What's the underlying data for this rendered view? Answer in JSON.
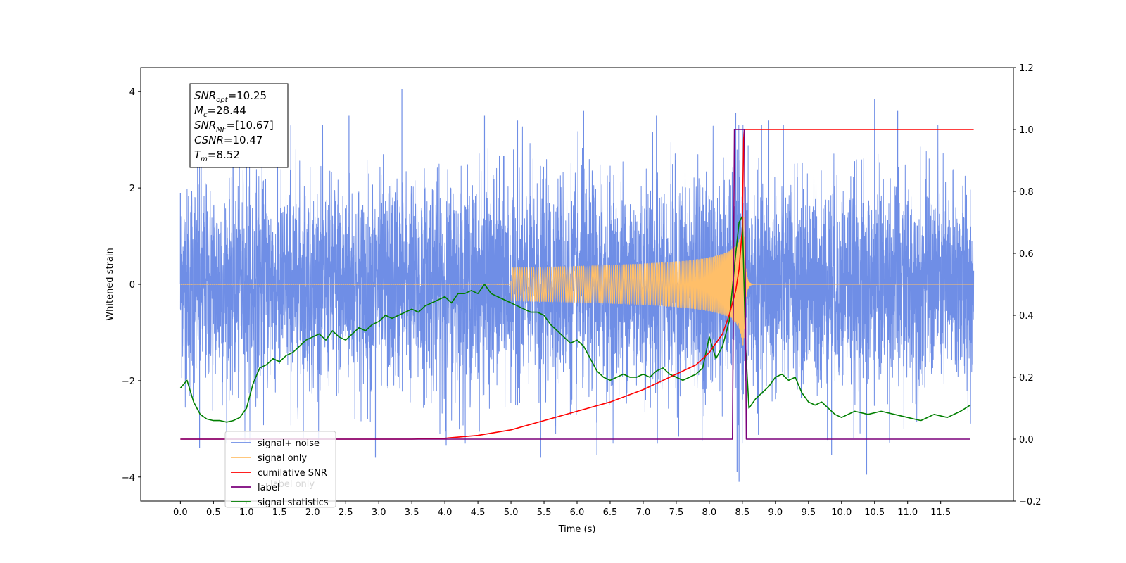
{
  "chart_data": {
    "type": "line",
    "xlabel": "Time (s)",
    "ylabel": "Whitened strain",
    "xlim": [
      -0.6,
      12.6
    ],
    "ylim": [
      -4.5,
      4.5
    ],
    "y2lim": [
      -0.2,
      1.2
    ],
    "grid": false,
    "legend_position": "lower-left",
    "x_ticks": [
      "0.0",
      "0.5",
      "1.0",
      "1.5",
      "2.0",
      "2.5",
      "3.0",
      "3.5",
      "4.0",
      "4.5",
      "5.0",
      "5.5",
      "6.0",
      "6.5",
      "7.0",
      "7.5",
      "8.0",
      "8.5",
      "9.0",
      "9.5",
      "10.0",
      "10.5",
      "11.0",
      "11.5"
    ],
    "y_ticks": [
      "4",
      "2",
      "0",
      "−2",
      "−4"
    ],
    "y2_ticks": [
      "1.2",
      "1.0",
      "0.8",
      "0.6",
      "0.4",
      "0.2",
      "0.0",
      "−0.2"
    ],
    "legend": [
      {
        "label": "signal+ noise",
        "color": "#6f8ee6"
      },
      {
        "label": "signal only",
        "color": "#ffbf69"
      },
      {
        "label": "cumilative SNR",
        "color": "#ff0000"
      },
      {
        "label": "label",
        "color": "#7b007b"
      },
      {
        "label": "signal statistics",
        "color": "#007f00"
      }
    ],
    "hidden_legend_text": "label only",
    "annotation": {
      "lines": [
        {
          "base": "SNR",
          "sub": "opt",
          "value": "=10.25"
        },
        {
          "base": "M",
          "sub": "c",
          "value": "=28.44"
        },
        {
          "base": "SNR",
          "sub": "MF",
          "value": "=[10.67]"
        },
        {
          "base": "CSNR",
          "sub": "",
          "value": "=10.47"
        },
        {
          "base": "T",
          "sub": "m",
          "value": "=8.52"
        }
      ]
    },
    "series": [
      {
        "name": "signal+ noise",
        "axis": "left",
        "color": "#6f8ee6",
        "x_range": [
          0.0,
          12.0
        ],
        "noise_sigma": 1.0,
        "peak_values": [
          {
            "x": 0.0,
            "y": 1.9
          },
          {
            "x": 0.26,
            "y": 3.3
          },
          {
            "x": 0.29,
            "y": -3.4
          },
          {
            "x": 1.0,
            "y": 3.8
          },
          {
            "x": 1.67,
            "y": 3.3
          },
          {
            "x": 2.55,
            "y": 3.5
          },
          {
            "x": 2.95,
            "y": -3.6
          },
          {
            "x": 3.35,
            "y": 4.05
          },
          {
            "x": 4.02,
            "y": -3.35
          },
          {
            "x": 4.6,
            "y": 3.5
          },
          {
            "x": 5.1,
            "y": 3.4
          },
          {
            "x": 5.45,
            "y": -3.6
          },
          {
            "x": 6.1,
            "y": 3.6
          },
          {
            "x": 6.3,
            "y": -3.55
          },
          {
            "x": 7.2,
            "y": 3.5
          },
          {
            "x": 8.4,
            "y": 3.55
          },
          {
            "x": 8.42,
            "y": -3.9
          },
          {
            "x": 8.45,
            "y": -4.1
          },
          {
            "x": 8.9,
            "y": 3.4
          },
          {
            "x": 9.85,
            "y": -3.55
          },
          {
            "x": 10.38,
            "y": -3.95
          },
          {
            "x": 10.5,
            "y": 3.85
          },
          {
            "x": 10.85,
            "y": 3.6
          },
          {
            "x": 11.95,
            "y": -2.9
          }
        ]
      },
      {
        "name": "signal only",
        "axis": "left",
        "color": "#ffbf69",
        "x_range": [
          0.0,
          12.0
        ],
        "merger_time": 8.52,
        "peak_amplitude": 1.4
      },
      {
        "name": "cumilative SNR",
        "axis": "right",
        "color": "#ff0000",
        "x": [
          0.0,
          3.5,
          4.0,
          4.5,
          5.0,
          5.5,
          6.0,
          6.5,
          7.0,
          7.5,
          7.8,
          8.0,
          8.2,
          8.3,
          8.4,
          8.45,
          8.5,
          8.52,
          8.53,
          12.0
        ],
        "values": [
          0.0,
          0.0,
          0.003,
          0.012,
          0.03,
          0.06,
          0.09,
          0.12,
          0.16,
          0.21,
          0.24,
          0.28,
          0.34,
          0.4,
          0.48,
          0.55,
          0.68,
          0.97,
          1.0,
          1.0
        ]
      },
      {
        "name": "label",
        "axis": "right",
        "color": "#7b007b",
        "x": [
          0.0,
          8.35,
          8.38,
          8.5,
          8.53,
          8.56,
          11.95
        ],
        "values": [
          0.0,
          0.0,
          1.0,
          1.0,
          1.0,
          0.0,
          0.0
        ]
      },
      {
        "name": "signal statistics",
        "axis": "right",
        "color": "#007f00",
        "x": [
          0.0,
          0.1,
          0.2,
          0.3,
          0.4,
          0.5,
          0.6,
          0.7,
          0.8,
          0.9,
          1.0,
          1.1,
          1.2,
          1.3,
          1.4,
          1.5,
          1.6,
          1.7,
          1.8,
          1.9,
          2.0,
          2.1,
          2.2,
          2.3,
          2.4,
          2.5,
          2.6,
          2.7,
          2.8,
          2.9,
          3.0,
          3.1,
          3.2,
          3.3,
          3.4,
          3.5,
          3.6,
          3.7,
          3.8,
          3.9,
          4.0,
          4.1,
          4.2,
          4.3,
          4.4,
          4.5,
          4.6,
          4.7,
          4.8,
          4.9,
          5.0,
          5.1,
          5.2,
          5.3,
          5.4,
          5.5,
          5.6,
          5.7,
          5.8,
          5.9,
          6.0,
          6.1,
          6.2,
          6.3,
          6.4,
          6.5,
          6.6,
          6.7,
          6.8,
          6.9,
          7.0,
          7.1,
          7.2,
          7.3,
          7.4,
          7.5,
          7.6,
          7.7,
          7.8,
          7.9,
          8.0,
          8.1,
          8.2,
          8.3,
          8.4,
          8.45,
          8.5,
          8.55,
          8.6,
          8.7,
          8.8,
          8.9,
          9.0,
          9.1,
          9.2,
          9.3,
          9.4,
          9.5,
          9.6,
          9.7,
          9.8,
          9.9,
          10.0,
          10.2,
          10.4,
          10.6,
          10.8,
          11.0,
          11.2,
          11.4,
          11.6,
          11.8,
          11.95
        ],
        "values": [
          0.165,
          0.19,
          0.12,
          0.08,
          0.065,
          0.06,
          0.06,
          0.055,
          0.06,
          0.07,
          0.1,
          0.18,
          0.23,
          0.24,
          0.26,
          0.25,
          0.27,
          0.28,
          0.3,
          0.32,
          0.33,
          0.34,
          0.32,
          0.35,
          0.33,
          0.32,
          0.34,
          0.36,
          0.35,
          0.37,
          0.38,
          0.4,
          0.39,
          0.4,
          0.41,
          0.42,
          0.41,
          0.43,
          0.44,
          0.45,
          0.46,
          0.44,
          0.47,
          0.47,
          0.48,
          0.47,
          0.5,
          0.47,
          0.46,
          0.45,
          0.44,
          0.43,
          0.42,
          0.41,
          0.41,
          0.4,
          0.37,
          0.35,
          0.33,
          0.31,
          0.32,
          0.3,
          0.26,
          0.22,
          0.2,
          0.19,
          0.2,
          0.21,
          0.2,
          0.2,
          0.21,
          0.2,
          0.22,
          0.23,
          0.21,
          0.2,
          0.19,
          0.2,
          0.21,
          0.23,
          0.33,
          0.26,
          0.3,
          0.38,
          0.6,
          0.7,
          0.72,
          0.3,
          0.1,
          0.13,
          0.15,
          0.17,
          0.2,
          0.21,
          0.19,
          0.2,
          0.15,
          0.12,
          0.11,
          0.12,
          0.1,
          0.08,
          0.07,
          0.09,
          0.08,
          0.09,
          0.08,
          0.07,
          0.06,
          0.08,
          0.07,
          0.09,
          0.11
        ]
      }
    ]
  }
}
